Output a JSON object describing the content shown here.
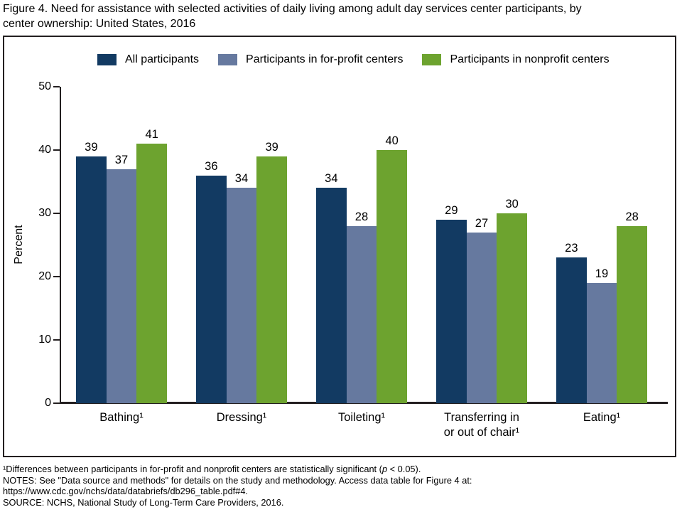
{
  "chart_data": {
    "type": "bar",
    "title": "Figure 4. Need for assistance with selected activities of daily living among adult day services center participants, by\ncenter ownership: United States, 2016",
    "categories": [
      "Bathing¹",
      "Dressing¹",
      "Toileting¹",
      "Transferring in\nor out of chair¹",
      "Eating¹"
    ],
    "series": [
      {
        "name": "All participants",
        "color": "#123A62",
        "values": [
          39,
          36,
          34,
          29,
          23
        ]
      },
      {
        "name": "Participants in for-profit centers",
        "color": "#66799F",
        "values": [
          37,
          34,
          28,
          27,
          19
        ]
      },
      {
        "name": "Participants in nonprofit centers",
        "color": "#6DA32F",
        "values": [
          41,
          39,
          40,
          30,
          28
        ]
      }
    ],
    "ylabel": "Percent",
    "ylim": [
      0,
      50
    ],
    "yticks": [
      0,
      10,
      20,
      30,
      40,
      50
    ],
    "grid": false,
    "legend_position": "top",
    "value_labels": true,
    "axis_color": "#231F20"
  },
  "footnotes": {
    "significance_pre": "¹Differences between participants in for-profit and nonprofit centers are statistically significant (",
    "significance_p": "p",
    "significance_post": " < 0.05).",
    "notes": "NOTES: See \"Data source and methods\" for details on the study and methodology. Access data table for Figure 4 at:",
    "url": "https://www.cdc.gov/nchs/data/databriefs/db296_table.pdf#4.",
    "source": "SOURCE: NCHS, National Study of Long-Term Care Providers, 2016."
  }
}
